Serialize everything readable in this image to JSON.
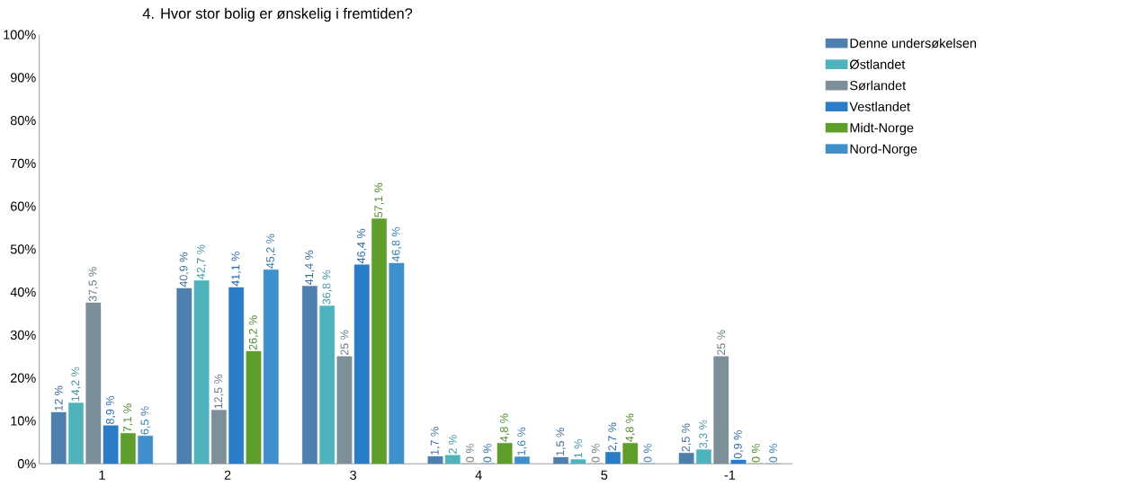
{
  "chart_data": {
    "type": "bar",
    "title": "4. Hvor stor bolig er ønskelig i fremtiden?",
    "categories": [
      "1",
      "2",
      "3",
      "4",
      "5",
      "-1"
    ],
    "series": [
      {
        "name": "Denne undersøkelsen",
        "color": "#4f7fae",
        "values": [
          12,
          40.9,
          41.4,
          1.7,
          1.5,
          2.5
        ],
        "value_labels": [
          "12 %",
          "40,9 %",
          "41,4 %",
          "1,7 %",
          "1,5 %",
          "2,5 %"
        ]
      },
      {
        "name": "Østlandet",
        "color": "#4fb3bd",
        "values": [
          14.2,
          42.7,
          36.8,
          2,
          1,
          3.3
        ],
        "value_labels": [
          "14,2 %",
          "42,7 %",
          "36,8 %",
          "2 %",
          "1 %",
          "3,3 %"
        ]
      },
      {
        "name": "Sørlandet",
        "color": "#7d8f99",
        "values": [
          37.5,
          12.5,
          25,
          0,
          0,
          25
        ],
        "value_labels": [
          "37,5 %",
          "12,5 %",
          "25 %",
          "0 %",
          "0 %",
          "25 %"
        ]
      },
      {
        "name": "Vestlandet",
        "color": "#2a7cc7",
        "values": [
          8.9,
          41.1,
          46.4,
          0,
          2.7,
          0.9
        ],
        "value_labels": [
          "8,9 %",
          "41,1 %",
          "46,4 %",
          "0 %",
          "2,7 %",
          "0,9 %"
        ]
      },
      {
        "name": "Midt-Norge",
        "color": "#5e9e2a",
        "values": [
          7.1,
          26.2,
          57.1,
          4.8,
          4.8,
          0
        ],
        "value_labels": [
          "7,1 %",
          "26,2 %",
          "57,1 %",
          "4,8 %",
          "4,8 %",
          "0 %"
        ]
      },
      {
        "name": "Nord-Norge",
        "color": "#3f8fca",
        "values": [
          6.5,
          45.2,
          46.8,
          1.6,
          0,
          0
        ],
        "value_labels": [
          "6,5 %",
          "45,2 %",
          "46,8 %",
          "1,6 %",
          "0 %",
          "0 %"
        ]
      }
    ],
    "ylim": [
      0,
      100
    ],
    "yticks": [
      {
        "value": 0,
        "label": "0%"
      },
      {
        "value": 10,
        "label": "10%"
      },
      {
        "value": 20,
        "label": "20%"
      },
      {
        "value": 30,
        "label": "30%"
      },
      {
        "value": 40,
        "label": "40%"
      },
      {
        "value": 50,
        "label": "50%"
      },
      {
        "value": 60,
        "label": "60%"
      },
      {
        "value": 70,
        "label": "70%"
      },
      {
        "value": 80,
        "label": "80%"
      },
      {
        "value": 90,
        "label": "90%"
      },
      {
        "value": 100,
        "label": "100%"
      }
    ],
    "legend": "right"
  }
}
